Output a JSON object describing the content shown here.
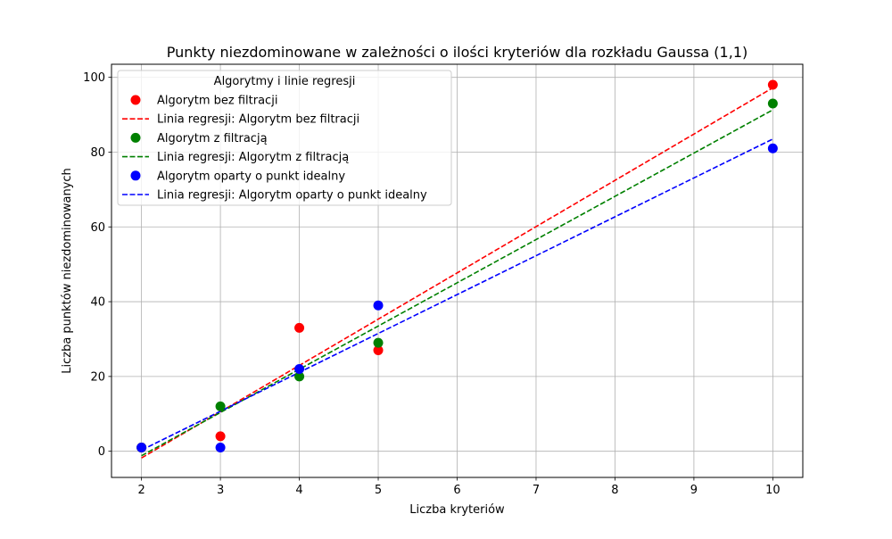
{
  "chart_data": {
    "type": "scatter",
    "title": "Punkty niezdominowane w zależności o ilości kryteriów dla rozkładu Gaussa (1,1)",
    "xlabel": "Liczba kryteriów",
    "ylabel": "Liczba punktów niezdominowanych",
    "xlim": [
      1.62,
      10.38
    ],
    "ylim": [
      -7.0,
      103.5
    ],
    "xticks": [
      2,
      3,
      4,
      5,
      6,
      7,
      8,
      9,
      10
    ],
    "yticks": [
      0,
      20,
      40,
      60,
      80,
      100
    ],
    "grid": true,
    "legend": {
      "title": "Algorytmy i linie regresji",
      "placement": "upper-left"
    },
    "series": [
      {
        "name": "Algorytm bez filtracji",
        "kind": "scatter",
        "color": "#ff0000",
        "x": [
          2,
          3,
          4,
          5,
          10
        ],
        "y": [
          1,
          4,
          33,
          27,
          98
        ]
      },
      {
        "name": "Linia regresji: Algorytm bez filtracji",
        "kind": "regression",
        "color": "#ff0000",
        "x": [
          2,
          10
        ],
        "y": [
          -1.8,
          97.2
        ]
      },
      {
        "name": "Algorytm z filtracją",
        "kind": "scatter",
        "color": "#008000",
        "x": [
          2,
          3,
          4,
          5,
          10
        ],
        "y": [
          1,
          12,
          20,
          29,
          93
        ]
      },
      {
        "name": "Linia regresji: Algorytm z filtracją",
        "kind": "regression",
        "color": "#008000",
        "x": [
          2,
          10
        ],
        "y": [
          -1.2,
          91.3
        ]
      },
      {
        "name": "Algorytm oparty o punkt idealny",
        "kind": "scatter",
        "color": "#0000ff",
        "x": [
          2,
          3,
          4,
          5,
          10
        ],
        "y": [
          1,
          1,
          22,
          39,
          81
        ]
      },
      {
        "name": "Linia regresji: Algorytm oparty o punkt idealny",
        "kind": "regression",
        "color": "#0000ff",
        "x": [
          2,
          10
        ],
        "y": [
          0.3,
          83.5
        ]
      }
    ]
  }
}
